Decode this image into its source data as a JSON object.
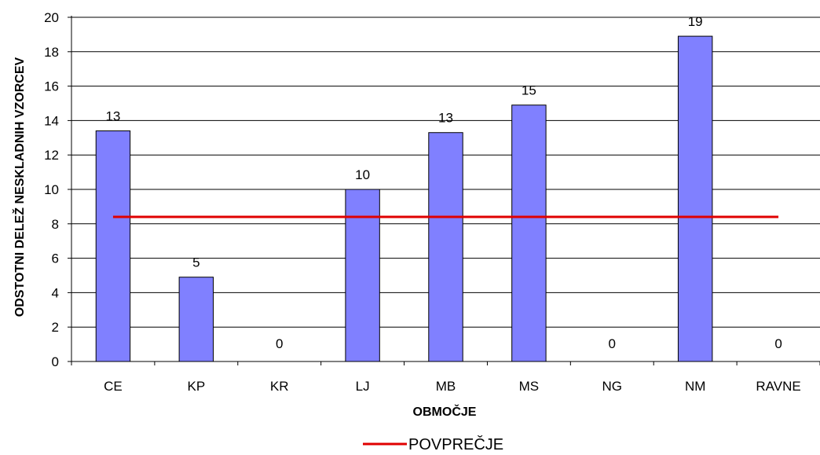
{
  "chart_data": {
    "type": "bar",
    "categories": [
      "CE",
      "KP",
      "KR",
      "LJ",
      "MB",
      "MS",
      "NG",
      "NM",
      "RAVNE"
    ],
    "series": [
      {
        "values": [
          13.4,
          4.9,
          0,
          10,
          13.3,
          14.9,
          0,
          18.9,
          0
        ],
        "labels": [
          "13",
          "5",
          "0",
          "10",
          "13",
          "15",
          "0",
          "19",
          "0"
        ],
        "color": "#8080FF"
      }
    ],
    "reference_line": {
      "name": "POVPREČJE",
      "value": 8.4,
      "color": "#E00000"
    },
    "xlabel": "OBMOČJE",
    "ylabel": "ODSTOTNI DELEŽ NESKLADNIH VZORCEV",
    "ylim": [
      0,
      20
    ],
    "y_ticks": [
      "0",
      "2",
      "4",
      "6",
      "8",
      "10",
      "12",
      "14",
      "16",
      "18",
      "20"
    ],
    "grid": true,
    "legend_position": "bottom"
  }
}
